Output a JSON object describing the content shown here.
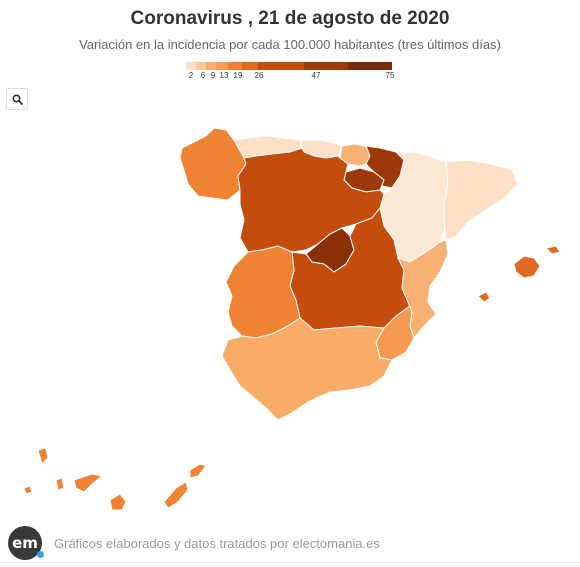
{
  "header": {
    "title": "Coronavirus , 21 de agosto de 2020",
    "subtitle": "Variación en la incidencia por cada 100.000 habitantes (tres últimos días)"
  },
  "legend": {
    "ticks": [
      "2",
      "6",
      "9",
      "13",
      "19",
      "26",
      "47",
      "75"
    ],
    "colors": [
      "#fde0c5",
      "#fcc99b",
      "#f9b074",
      "#f59a53",
      "#ef8036",
      "#e06a22",
      "#c44d0e",
      "#9c3a0a",
      "#7a2c08"
    ]
  },
  "toolbar": {
    "zoom_icon": "magnifier-icon"
  },
  "footer": {
    "logo_text": "em",
    "credits": "Gráficos elaborados y datos tratados por electomania.es"
  },
  "regions": [
    {
      "name": "Galicia",
      "color": "#f08233"
    },
    {
      "name": "Asturias",
      "color": "#fde0c5"
    },
    {
      "name": "Cantabria",
      "color": "#fde0c5"
    },
    {
      "name": "País Vasco",
      "color": "#f9b074"
    },
    {
      "name": "Navarra",
      "color": "#9c3a0a"
    },
    {
      "name": "La Rioja",
      "color": "#9c3a0a"
    },
    {
      "name": "Aragón",
      "color": "#fde8d4"
    },
    {
      "name": "Cataluña",
      "color": "#fde0c5"
    },
    {
      "name": "Castilla y León",
      "color": "#c44d0e"
    },
    {
      "name": "Madrid",
      "color": "#8a2f08"
    },
    {
      "name": "Castilla-La Mancha",
      "color": "#c44d0e"
    },
    {
      "name": "Extremadura",
      "color": "#f08233"
    },
    {
      "name": "C. Valenciana",
      "color": "#f9b074"
    },
    {
      "name": "Murcia",
      "color": "#f59a53"
    },
    {
      "name": "Andalucía",
      "color": "#f9ab68"
    },
    {
      "name": "Baleares",
      "color": "#e06a22"
    },
    {
      "name": "Canarias",
      "color": "#f08233"
    }
  ]
}
